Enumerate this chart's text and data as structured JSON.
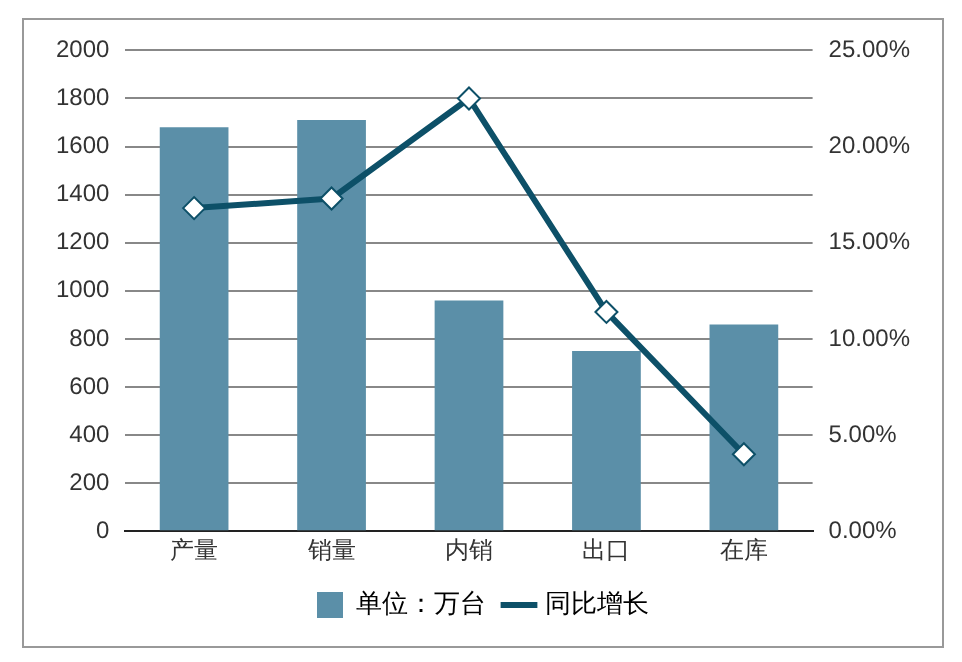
{
  "chart_data": {
    "type": "bar",
    "categories": [
      "产量",
      "销量",
      "内销",
      "出口",
      "在库"
    ],
    "series": [
      {
        "name": "单位：万台",
        "color": "#5b8fa8",
        "values": [
          1680,
          1710,
          960,
          750,
          860
        ]
      },
      {
        "name": "同比增长",
        "type": "line",
        "axis": "y2",
        "color": "#0d5068",
        "marker": "diamond",
        "values": [
          16.8,
          17.3,
          22.5,
          11.4,
          4.0
        ]
      }
    ],
    "ylim": [
      0,
      2000
    ],
    "yticks": [
      0,
      200,
      400,
      600,
      800,
      1000,
      1200,
      1400,
      1600,
      1800,
      2000
    ],
    "y2lim": [
      0,
      25
    ],
    "y2ticks": [
      {
        "value": 0,
        "label": "0.00%"
      },
      {
        "value": 5,
        "label": "5.00%"
      },
      {
        "value": 10,
        "label": "10.00%"
      },
      {
        "value": 15,
        "label": "15.00%"
      },
      {
        "value": 20,
        "label": "20.00%"
      },
      {
        "value": 25,
        "label": "25.00%"
      }
    ],
    "grid": "y",
    "legend": "bottom"
  }
}
